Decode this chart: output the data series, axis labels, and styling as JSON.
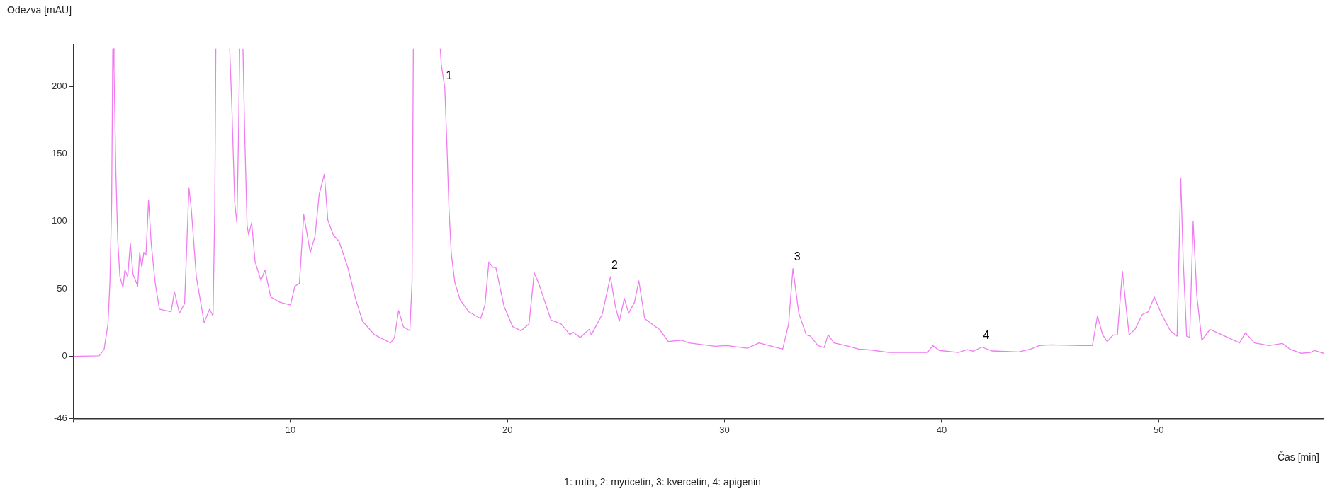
{
  "chart_data": {
    "type": "line",
    "xlabel": "Čas [min]",
    "ylabel": "Odezva [mAU]",
    "xlim": [
      0,
      57.6
    ],
    "ylim": [
      -46,
      231
    ],
    "xticks": [
      {
        "value": 0,
        "label": null
      },
      10,
      20,
      30,
      40,
      50
    ],
    "yticks": [
      -46,
      0,
      50,
      100,
      150,
      200
    ],
    "x": [
      0,
      1.18,
      1.41,
      1.59,
      1.68,
      1.76,
      1.81,
      1.82,
      1.84,
      1.87,
      1.95,
      2.04,
      2.14,
      2.28,
      2.37,
      2.5,
      2.62,
      2.74,
      2.96,
      3.05,
      3.15,
      3.24,
      3.34,
      3.46,
      3.58,
      3.76,
      3.96,
      4.23,
      4.5,
      4.65,
      4.88,
      5.12,
      5.32,
      5.43,
      5.66,
      6.02,
      6.27,
      6.43,
      6.51,
      6.56,
      6.9,
      7.2,
      7.3,
      7.43,
      7.53,
      7.6,
      7.66,
      7.73,
      7.81,
      7.9,
      8,
      8.07,
      8.21,
      8.37,
      8.64,
      8.82,
      9.09,
      9.53,
      10,
      10.2,
      10.41,
      10.61,
      10.91,
      11.13,
      11.32,
      11.56,
      11.72,
      11.97,
      12.24,
      12.64,
      12.99,
      13.32,
      13.87,
      14.61,
      14.79,
      14.98,
      15.2,
      15.5,
      15.6,
      15.66,
      16.3,
      16.9,
      16.95,
      17.11,
      17.2,
      17.3,
      17.41,
      17.57,
      17.81,
      18.22,
      18.76,
      18.96,
      19.14,
      19.32,
      19.46,
      19.84,
      20.24,
      20.62,
      20.99,
      21.23,
      21.46,
      22,
      22.47,
      22.88,
      23.01,
      23.35,
      23.76,
      23.86,
      24.36,
      24.74,
      24.97,
      25.15,
      25.38,
      25.58,
      25.85,
      26.05,
      26.32,
      26.73,
      27,
      27.41,
      28.01,
      28.35,
      29.57,
      30.11,
      31.05,
      31.59,
      31.93,
      32.68,
      32.95,
      33.15,
      33.42,
      33.76,
      33.96,
      34.3,
      34.59,
      34.77,
      35.04,
      35.58,
      36.19,
      36.7,
      37.58,
      39.35,
      39.59,
      39.89,
      40.77,
      41.18,
      41.45,
      41.86,
      42.33,
      43.55,
      44.1,
      44.5,
      45.05,
      46.4,
      46.95,
      47.18,
      47.42,
      47.63,
      47.9,
      48.1,
      48.33,
      48.51,
      48.64,
      48.91,
      49.25,
      49.52,
      49.8,
      50.14,
      50.54,
      50.85,
      51.02,
      51.13,
      51.29,
      51.43,
      51.59,
      51.76,
      51.99,
      52.37,
      52.65,
      53.32,
      53.73,
      54,
      54.41,
      55.09,
      55.7,
      56.04,
      56.58,
      56.99,
      57.19,
      57.6
    ],
    "series": [
      {
        "color": "#f07cf0",
        "values": [
          0,
          0.4,
          5,
          24,
          55,
          114,
          228,
          null,
          228,
          211,
          139,
          86,
          59,
          51,
          64,
          59,
          84,
          61,
          52,
          77,
          66,
          77,
          75,
          116,
          84,
          55,
          35,
          34,
          33,
          48,
          32,
          39,
          125,
          109,
          59,
          25,
          35,
          30,
          109,
          228,
          null,
          228,
          184,
          114,
          99,
          159,
          228,
          null,
          228,
          159,
          97,
          90,
          99,
          70,
          56,
          64,
          44,
          40,
          38,
          52,
          54,
          105,
          77,
          89,
          120,
          135,
          101,
          90,
          85,
          66,
          43,
          26,
          16,
          10,
          14,
          34,
          22,
          19,
          55,
          228,
          null,
          228,
          216,
          199,
          160,
          110,
          76,
          55,
          42,
          33,
          28,
          38,
          70,
          66,
          66,
          37,
          22,
          19,
          24,
          62,
          53,
          27,
          24,
          16,
          18,
          14,
          20,
          16,
          31,
          59,
          37,
          26,
          43,
          32,
          40,
          56,
          28,
          23,
          20,
          11,
          12,
          10,
          7.5,
          8,
          6,
          10,
          8.5,
          5.4,
          24,
          65,
          32,
          16,
          15,
          8,
          6.5,
          16,
          10,
          8,
          5.4,
          4.8,
          2.9,
          2.9,
          8,
          4.4,
          2.9,
          5,
          3.8,
          6.9,
          4,
          3.3,
          5.4,
          8,
          8.5,
          8,
          8,
          30,
          16,
          11,
          15.8,
          16,
          63,
          35,
          16,
          20,
          31,
          33,
          44,
          31,
          19,
          15,
          132,
          72,
          15,
          14,
          100,
          45,
          12,
          20,
          18,
          13,
          10,
          17.5,
          10,
          8,
          9.6,
          5.4,
          2.3,
          2.9,
          4.4,
          2.3
        ]
      }
    ],
    "annotations": [
      {
        "text": "1",
        "x": 17.11,
        "y": 199
      },
      {
        "text": "2",
        "x": 24.74,
        "y": 59
      },
      {
        "text": "3",
        "x": 33.15,
        "y": 65
      },
      {
        "text": "4",
        "x": 41.86,
        "y": 6.9
      },
      "1: rutin, 2: myricetin, 3: kvercetin, 4: apigenin"
    ]
  }
}
